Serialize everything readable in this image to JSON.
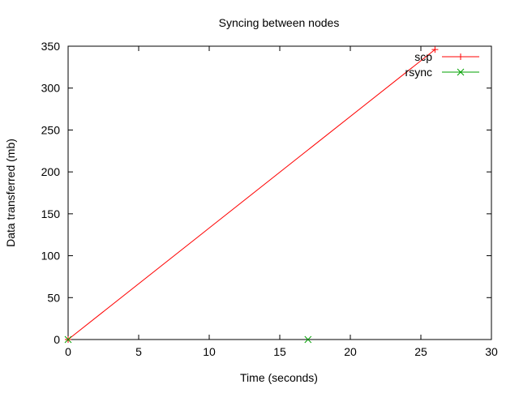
{
  "chart_data": {
    "type": "line",
    "title": "Syncing between nodes",
    "xlabel": "Time (seconds)",
    "ylabel": "Data transferred (mb)",
    "xlim": [
      0,
      30
    ],
    "ylim": [
      0,
      350
    ],
    "x_ticks": [
      0,
      5,
      10,
      15,
      20,
      25,
      30
    ],
    "y_ticks": [
      0,
      50,
      100,
      150,
      200,
      250,
      300,
      350
    ],
    "grid": false,
    "legend_position": "top-right",
    "series": [
      {
        "name": "scp",
        "color": "#ff0000",
        "marker": "plus",
        "points": [
          [
            0,
            0
          ],
          [
            26,
            346
          ]
        ]
      },
      {
        "name": "rsync",
        "color": "#00a000",
        "marker": "cross",
        "points": [
          [
            0,
            0
          ],
          [
            17,
            0
          ]
        ]
      }
    ]
  }
}
